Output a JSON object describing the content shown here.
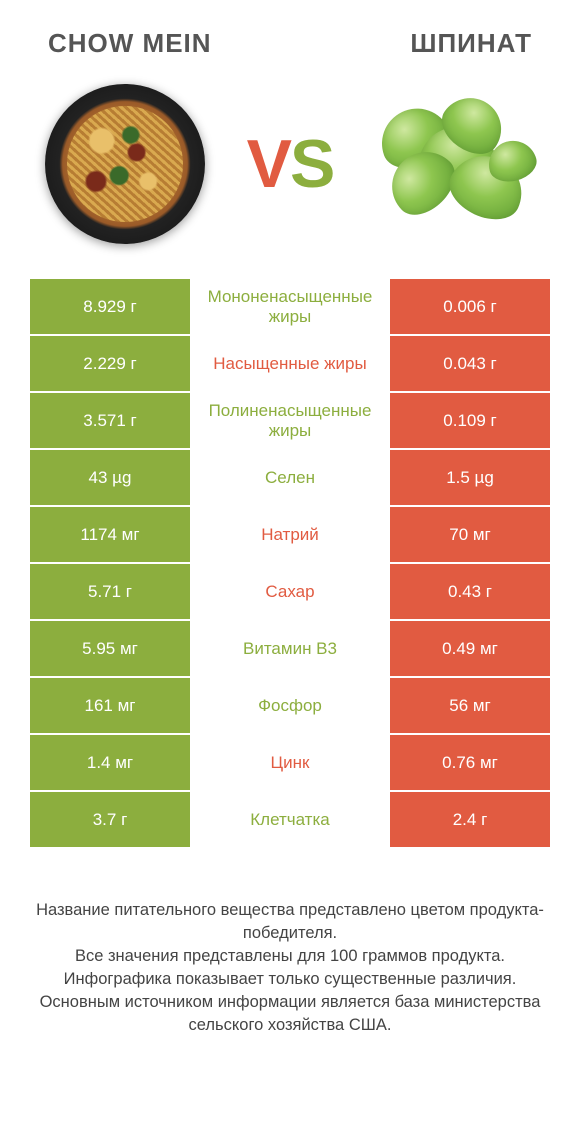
{
  "header": {
    "left_title": "CHOW MEIN",
    "right_title": "ШПИНАТ"
  },
  "vs": {
    "v": "V",
    "s": "S"
  },
  "colors": {
    "green": "#8cae3e",
    "orange": "#e15b41",
    "text_gray": "#555555",
    "white": "#ffffff"
  },
  "table": {
    "left_color": "green",
    "right_color": "orange",
    "rows": [
      {
        "left": "8.929 г",
        "label": "Мононенасыщенные жиры",
        "right": "0.006 г",
        "label_side": "left"
      },
      {
        "left": "2.229 г",
        "label": "Насыщенные жиры",
        "right": "0.043 г",
        "label_side": "right"
      },
      {
        "left": "3.571 г",
        "label": "Полиненасыщенные жиры",
        "right": "0.109 г",
        "label_side": "left"
      },
      {
        "left": "43 µg",
        "label": "Селен",
        "right": "1.5 µg",
        "label_side": "left"
      },
      {
        "left": "1174 мг",
        "label": "Натрий",
        "right": "70 мг",
        "label_side": "right"
      },
      {
        "left": "5.71 г",
        "label": "Сахар",
        "right": "0.43 г",
        "label_side": "right"
      },
      {
        "left": "5.95 мг",
        "label": "Витамин B3",
        "right": "0.49 мг",
        "label_side": "left"
      },
      {
        "left": "161 мг",
        "label": "Фосфор",
        "right": "56 мг",
        "label_side": "left"
      },
      {
        "left": "1.4 мг",
        "label": "Цинк",
        "right": "0.76 мг",
        "label_side": "right"
      },
      {
        "left": "3.7 г",
        "label": "Клетчатка",
        "right": "2.4 г",
        "label_side": "left"
      }
    ]
  },
  "footer": {
    "line1": "Название питательного вещества представлено цветом продукта-победителя.",
    "line2": "Все значения представлены для 100 граммов продукта.",
    "line3": "Инфографика показывает только существенные различия.",
    "line4": "Основным источником информации является база министерства сельского хозяйства США."
  }
}
